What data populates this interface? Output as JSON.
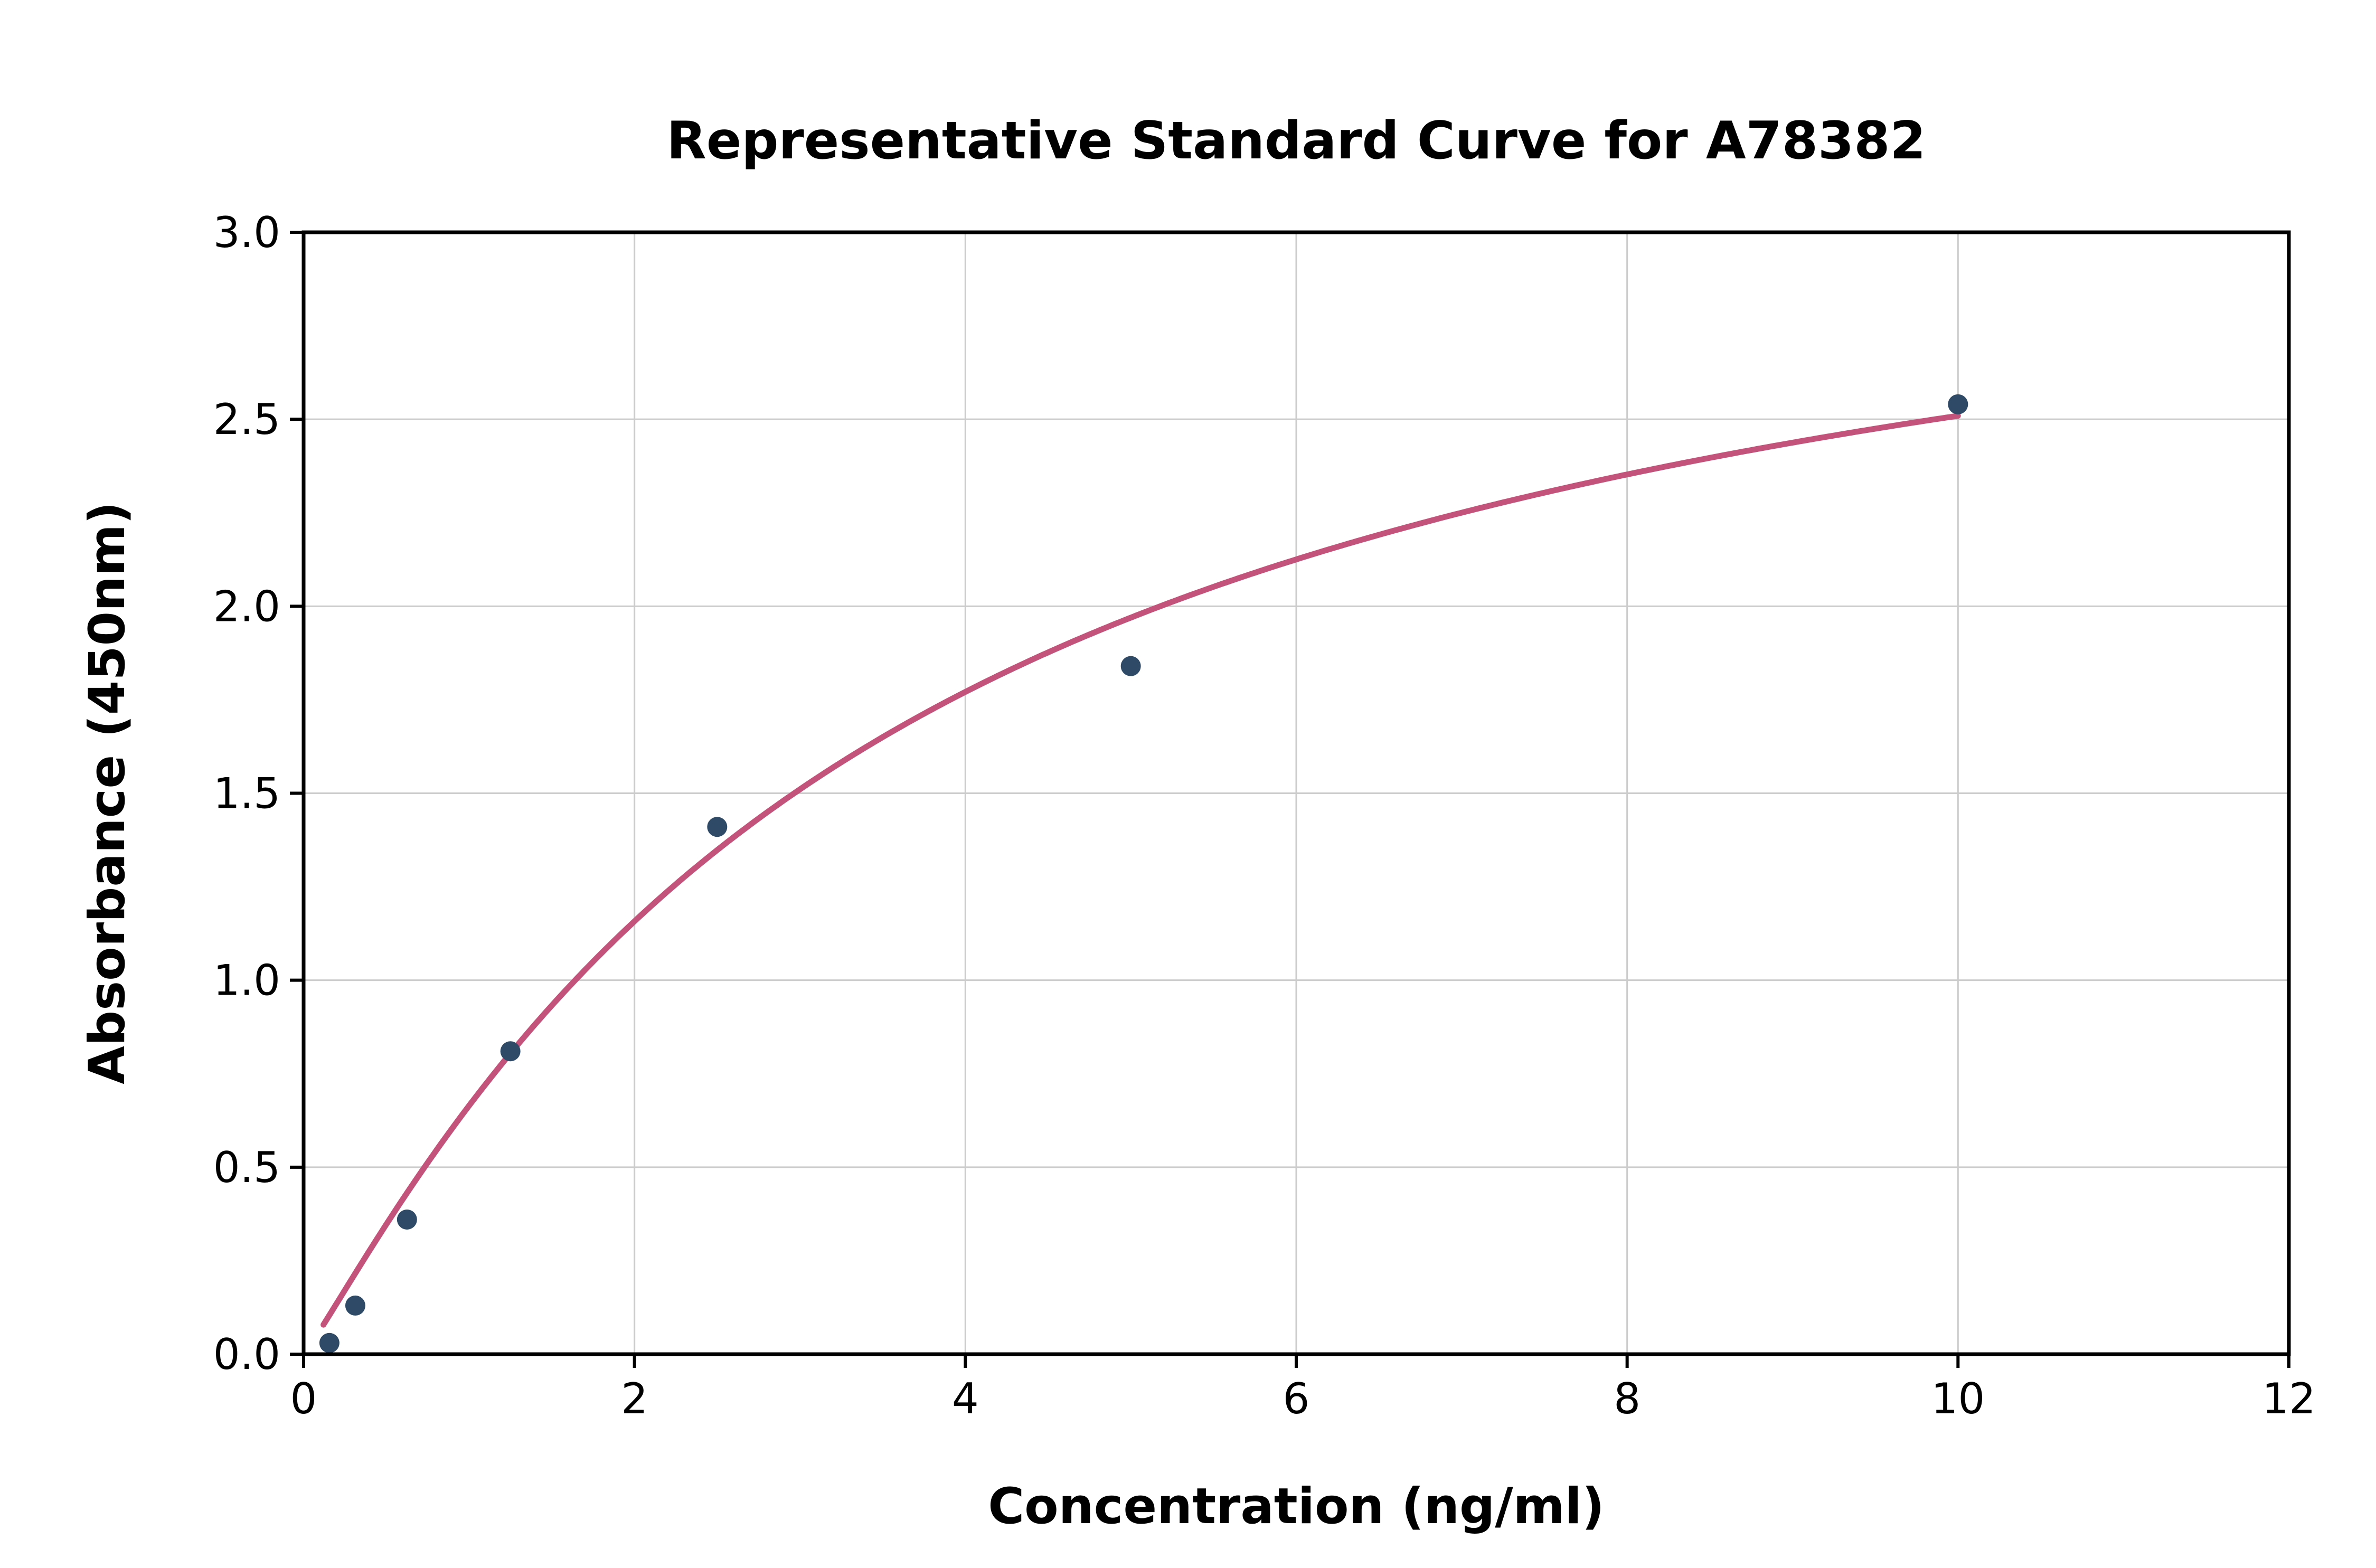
{
  "chart_data": {
    "type": "scatter",
    "title": "Representative Standard Curve for A78382",
    "xlabel": "Concentration (ng/ml)",
    "ylabel": "Absorbance (450nm)",
    "xlim": [
      0,
      12
    ],
    "ylim": [
      0,
      3
    ],
    "xticks": [
      0,
      2,
      4,
      6,
      8,
      10,
      12
    ],
    "xtick_labels": [
      "0",
      "2",
      "4",
      "6",
      "8",
      "10",
      "12"
    ],
    "yticks": [
      0,
      0.5,
      1,
      1.5,
      2,
      2.5,
      3
    ],
    "ytick_labels": [
      "0.0",
      "0.5",
      "1.0",
      "1.5",
      "2.0",
      "2.5",
      "3.0"
    ],
    "grid": true,
    "legend": "none",
    "styles": {
      "point_color": "#2e4a66",
      "curve_color": "#c4537b",
      "grid_color": "#cccccc",
      "axis_color": "#000000",
      "background": "#ffffff"
    },
    "series": [
      {
        "name": "standard-points",
        "type": "scatter",
        "points": [
          {
            "x": 0.156,
            "y": 0.03
          },
          {
            "x": 0.3125,
            "y": 0.13
          },
          {
            "x": 0.625,
            "y": 0.36
          },
          {
            "x": 1.25,
            "y": 0.81
          },
          {
            "x": 2.5,
            "y": 1.41
          },
          {
            "x": 5,
            "y": 1.84
          },
          {
            "x": 10,
            "y": 2.54
          }
        ]
      },
      {
        "name": "fitted-curve",
        "type": "curve",
        "model": "4pl",
        "params": {
          "a": 0,
          "b": 1.1,
          "c": 3.5,
          "d": 3.3
        },
        "x_start": 0.12,
        "x_end": 10
      }
    ]
  }
}
